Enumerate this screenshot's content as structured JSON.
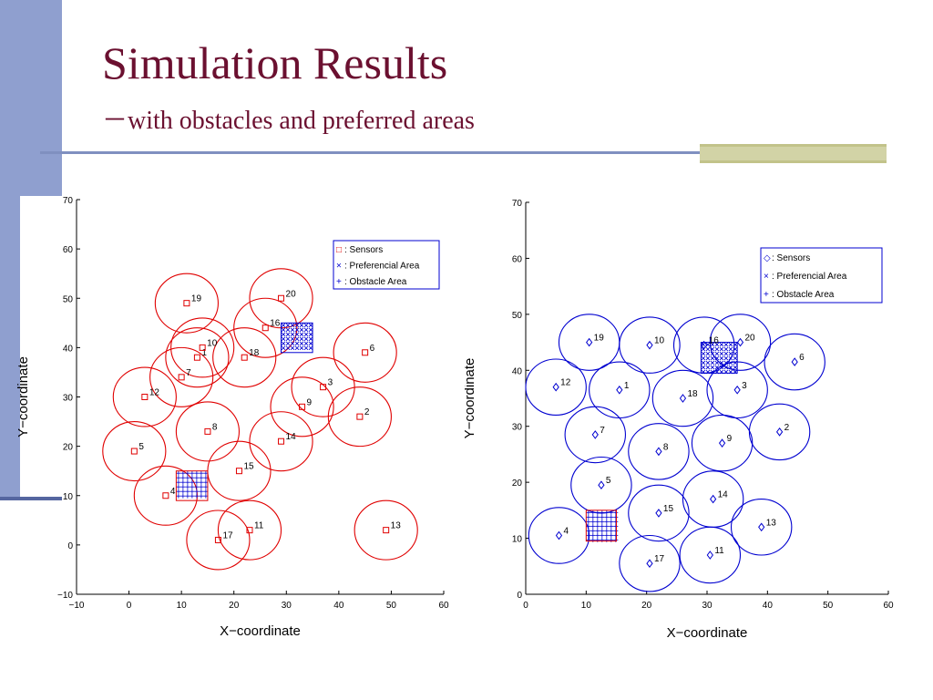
{
  "slide": {
    "title": "Simulation Results",
    "subtitle_dash": "－",
    "subtitle": "with obstacles and preferred areas"
  },
  "colors": {
    "title": "#6b1030",
    "sidebar": "#8f9fcf",
    "accent_bar": "#d2d3a6",
    "red": "#e00000",
    "blue": "#0000d0"
  },
  "chart_data": [
    {
      "type": "scatter",
      "xlabel": "X−coordinate",
      "ylabel": "Y−coordinate",
      "xlim": [
        -10,
        60
      ],
      "ylim": [
        -10,
        70
      ],
      "xticks": [
        "−10",
        "0",
        "10",
        "20",
        "30",
        "40",
        "50",
        "60"
      ],
      "yticks": [
        "−10",
        "0",
        "10",
        "20",
        "30",
        "40",
        "50",
        "60",
        "70"
      ],
      "marker": "square",
      "color": "#e00000",
      "sensing_radius": 6,
      "legend": {
        "placement": "top-right",
        "entries": [
          {
            "symbol": "□",
            "label": ": Sensors"
          },
          {
            "symbol": "×",
            "label": ": Preferencial Area"
          },
          {
            "symbol": "+",
            "label": ": Obstacle Area"
          }
        ]
      },
      "sensors": [
        {
          "id": "1",
          "x": 13,
          "y": 38
        },
        {
          "id": "2",
          "x": 44,
          "y": 26
        },
        {
          "id": "3",
          "x": 37,
          "y": 32
        },
        {
          "id": "4",
          "x": 7,
          "y": 10
        },
        {
          "id": "5",
          "x": 1,
          "y": 19
        },
        {
          "id": "6",
          "x": 45,
          "y": 39
        },
        {
          "id": "7",
          "x": 10,
          "y": 34
        },
        {
          "id": "8",
          "x": 15,
          "y": 23
        },
        {
          "id": "9",
          "x": 33,
          "y": 28
        },
        {
          "id": "10",
          "x": 14,
          "y": 40
        },
        {
          "id": "11",
          "x": 23,
          "y": 3
        },
        {
          "id": "12",
          "x": 3,
          "y": 30
        },
        {
          "id": "13",
          "x": 49,
          "y": 3
        },
        {
          "id": "14",
          "x": 29,
          "y": 21
        },
        {
          "id": "15",
          "x": 21,
          "y": 15
        },
        {
          "id": "16",
          "x": 26,
          "y": 44
        },
        {
          "id": "17",
          "x": 17,
          "y": 1
        },
        {
          "id": "18",
          "x": 22,
          "y": 38
        },
        {
          "id": "19",
          "x": 11,
          "y": 49
        },
        {
          "id": "20",
          "x": 29,
          "y": 50
        }
      ],
      "preferred_area": {
        "x0": 29,
        "x1": 35,
        "y0": 39,
        "y1": 45
      },
      "obstacle_area": {
        "x0": 9,
        "x1": 15,
        "y0": 9,
        "y1": 15
      }
    },
    {
      "type": "scatter",
      "xlabel": "X−coordinate",
      "ylabel": "Y−coordinate",
      "xlim": [
        0,
        60
      ],
      "ylim": [
        0,
        70
      ],
      "xticks": [
        "0",
        "10",
        "20",
        "30",
        "40",
        "50",
        "60"
      ],
      "yticks": [
        "0",
        "10",
        "20",
        "30",
        "40",
        "50",
        "60",
        "70"
      ],
      "marker": "diamond",
      "color": "#0000d0",
      "sensing_radius": 5,
      "legend": {
        "placement": "top-right",
        "entries": [
          {
            "symbol": "◇",
            "label": ": Sensors"
          },
          {
            "symbol": "×",
            "label": ": Preferencial Area"
          },
          {
            "symbol": "+",
            "label": ": Obstacle Area"
          }
        ]
      },
      "sensors": [
        {
          "id": "1",
          "x": 15.5,
          "y": 36.5
        },
        {
          "id": "2",
          "x": 42,
          "y": 29
        },
        {
          "id": "3",
          "x": 35,
          "y": 36.5
        },
        {
          "id": "4",
          "x": 5.5,
          "y": 10.5
        },
        {
          "id": "5",
          "x": 12.5,
          "y": 19.5
        },
        {
          "id": "6",
          "x": 44.5,
          "y": 41.5
        },
        {
          "id": "7",
          "x": 11.5,
          "y": 28.5
        },
        {
          "id": "8",
          "x": 22,
          "y": 25.5
        },
        {
          "id": "9",
          "x": 32.5,
          "y": 27
        },
        {
          "id": "10",
          "x": 20.5,
          "y": 44.5
        },
        {
          "id": "11",
          "x": 30.5,
          "y": 7
        },
        {
          "id": "12",
          "x": 5,
          "y": 37
        },
        {
          "id": "13",
          "x": 39,
          "y": 12
        },
        {
          "id": "14",
          "x": 31,
          "y": 17
        },
        {
          "id": "15",
          "x": 22,
          "y": 14.5
        },
        {
          "id": "16",
          "x": 29.5,
          "y": 44.5
        },
        {
          "id": "17",
          "x": 20.5,
          "y": 5.5
        },
        {
          "id": "18",
          "x": 26,
          "y": 35
        },
        {
          "id": "19",
          "x": 10.5,
          "y": 45
        },
        {
          "id": "20",
          "x": 35.5,
          "y": 45
        }
      ],
      "preferred_area": {
        "x0": 29,
        "x1": 35,
        "y0": 39.5,
        "y1": 45
      },
      "obstacle_area": {
        "x0": 10,
        "x1": 15,
        "y0": 9.5,
        "y1": 15
      }
    }
  ]
}
